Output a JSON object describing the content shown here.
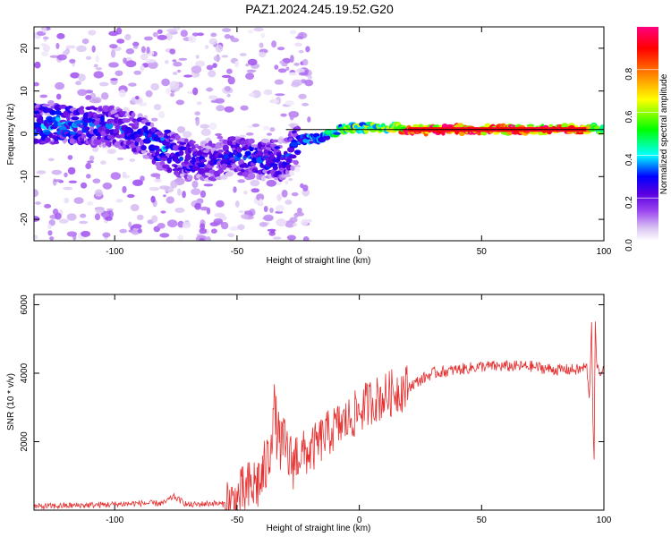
{
  "title": "PAZ1.2024.245.19.52.G20",
  "colors": {
    "snr_line": "#e53030",
    "frame": "#000000",
    "spectrum_center_line": "#000000"
  },
  "chart_data": [
    {
      "type": "heatmap",
      "xlabel": "Height of straight line (km)",
      "ylabel": "Frequency (Hz)",
      "xlim": [
        -133,
        100
      ],
      "ylim": [
        -25,
        25
      ],
      "xticks": [
        -100,
        -50,
        0,
        50,
        100
      ],
      "yticks": [
        -20,
        -10,
        0,
        10,
        20
      ],
      "colorbar": {
        "label": "Normalized spectral amplitude",
        "range": [
          0,
          1
        ],
        "ticks": [
          "0.0",
          "0.2",
          "0.4",
          "0.6",
          "0.8"
        ],
        "colormap": [
          "#ffffff",
          "#d9c3f2",
          "#9b45f0",
          "#5a00e0",
          "#0000ff",
          "#00ffff",
          "#00ff00",
          "#ffff00",
          "#ff8000",
          "#ff0000",
          "#ff0080"
        ]
      },
      "ridge": [
        {
          "x": -130,
          "f": 2.5,
          "amp": 0.35
        },
        {
          "x": -120,
          "f": 2.0,
          "amp": 0.35
        },
        {
          "x": -110,
          "f": 2.0,
          "amp": 0.3
        },
        {
          "x": -100,
          "f": 1.5,
          "amp": 0.3
        },
        {
          "x": -90,
          "f": 0.0,
          "amp": 0.3
        },
        {
          "x": -80,
          "f": -3.5,
          "amp": 0.35
        },
        {
          "x": -70,
          "f": -6.0,
          "amp": 0.3
        },
        {
          "x": -60,
          "f": -6.5,
          "amp": 0.25
        },
        {
          "x": -50,
          "f": -5.0,
          "amp": 0.3
        },
        {
          "x": -40,
          "f": -6.0,
          "amp": 0.3
        },
        {
          "x": -30,
          "f": -6.0,
          "amp": 0.3
        },
        {
          "x": -25,
          "f": -1.5,
          "amp": 0.3
        },
        {
          "x": -15,
          "f": -1.0,
          "amp": 0.4
        },
        {
          "x": -5,
          "f": 1.5,
          "amp": 0.55
        },
        {
          "x": 5,
          "f": 1.5,
          "amp": 0.55
        },
        {
          "x": 15,
          "f": 1.5,
          "amp": 0.6
        },
        {
          "x": 20,
          "f": 1.0,
          "amp": 0.9
        },
        {
          "x": 90,
          "f": 1.0,
          "amp": 0.9
        },
        {
          "x": 95,
          "f": 1.0,
          "amp": 0.6
        },
        {
          "x": 100,
          "f": 1.0,
          "amp": 0.5
        }
      ],
      "center_line": {
        "x_start": -30,
        "x_end": 100,
        "f": 1.0
      }
    },
    {
      "type": "line",
      "xlabel": "Height of straight line (km)",
      "ylabel": "SNR (10 * v/v)",
      "xlim": [
        -133,
        100
      ],
      "ylim": [
        0,
        6300
      ],
      "xticks": [
        -100,
        -50,
        0,
        50,
        100
      ],
      "yticks": [
        2000,
        4000,
        6000
      ],
      "series": [
        {
          "x": [
            -133,
            -120,
            -110,
            -100,
            -90,
            -80,
            -76,
            -70,
            -60,
            -52,
            -50,
            -45,
            -40,
            -37,
            -35,
            -33,
            -30,
            -28,
            -25,
            -20,
            -15,
            -10,
            -5,
            0,
            5,
            10,
            15,
            20,
            25,
            30,
            40,
            50,
            60,
            70,
            80,
            90,
            93,
            94,
            95,
            95.5,
            96,
            96.5,
            97,
            98,
            100
          ],
          "values": [
            100,
            130,
            150,
            170,
            200,
            200,
            400,
            150,
            200,
            150,
            250,
            600,
            900,
            1500,
            3000,
            2000,
            1800,
            1400,
            1600,
            1700,
            2100,
            2400,
            2600,
            2900,
            3200,
            3300,
            3500,
            3600,
            3800,
            4000,
            4100,
            4200,
            4200,
            4200,
            4100,
            4100,
            4200,
            3200,
            5500,
            2700,
            1500,
            5500,
            4300,
            4000,
            4100
          ]
        }
      ]
    }
  ]
}
